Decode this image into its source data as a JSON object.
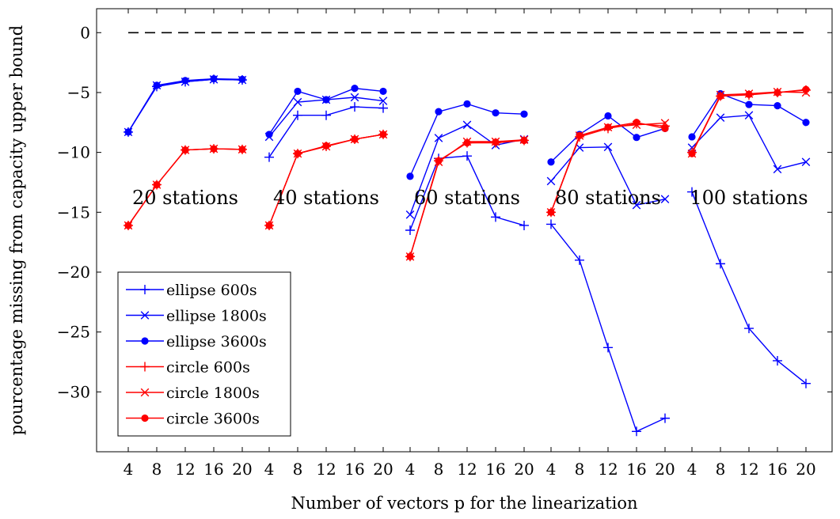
{
  "chart_data": {
    "type": "line",
    "xlabel": "Number of vectors p for the linearization",
    "ylabel": "pourcentage missing from capacity upper bound",
    "ylim": [
      -35,
      2
    ],
    "yticks": [
      0,
      -5,
      -10,
      -15,
      -20,
      -25,
      -30
    ],
    "ytick_labels": [
      "0",
      "−5",
      "−10",
      "−15",
      "−20",
      "−25",
      "−30"
    ],
    "x": [
      4,
      8,
      12,
      16,
      20
    ],
    "x_tick_labels": [
      "4",
      "8",
      "12",
      "16",
      "20"
    ],
    "baseline": {
      "y": 0,
      "style": "dashed",
      "color": "#000000"
    },
    "legend_position": "bottom-left",
    "grid": false,
    "groups": [
      {
        "label": "20 stations",
        "series": [
          {
            "name": "ellipse 600s",
            "values": [
              -8.3,
              -4.5,
              -4.1,
              -3.9,
              -3.95
            ]
          },
          {
            "name": "ellipse 1800s",
            "values": [
              -8.3,
              -4.4,
              -4.1,
              -3.9,
              -3.95
            ]
          },
          {
            "name": "ellipse 3600s",
            "values": [
              -8.3,
              -4.4,
              -4.0,
              -3.85,
              -3.9
            ]
          },
          {
            "name": "circle 600s",
            "values": [
              -16.1,
              -12.7,
              -9.8,
              -9.7,
              -9.75
            ]
          },
          {
            "name": "circle 1800s",
            "values": [
              -16.1,
              -12.7,
              -9.8,
              -9.7,
              -9.75
            ]
          },
          {
            "name": "circle 3600s",
            "values": [
              -16.1,
              -12.7,
              -9.8,
              -9.7,
              -9.75
            ]
          }
        ]
      },
      {
        "label": "40 stations",
        "series": [
          {
            "name": "ellipse 600s",
            "values": [
              -10.4,
              -6.9,
              -6.9,
              -6.2,
              -6.3
            ]
          },
          {
            "name": "ellipse 1800s",
            "values": [
              -8.7,
              -5.8,
              -5.6,
              -5.4,
              -5.7
            ]
          },
          {
            "name": "ellipse 3600s",
            "values": [
              -8.5,
              -4.9,
              -5.6,
              -4.65,
              -4.9
            ]
          },
          {
            "name": "circle 600s",
            "values": [
              -16.1,
              -10.1,
              -9.5,
              -8.9,
              -8.5
            ]
          },
          {
            "name": "circle 1800s",
            "values": [
              -16.1,
              -10.1,
              -9.5,
              -8.9,
              -8.5
            ]
          },
          {
            "name": "circle 3600s",
            "values": [
              -16.1,
              -10.1,
              -9.45,
              -8.9,
              -8.5
            ]
          }
        ]
      },
      {
        "label": "60 stations",
        "series": [
          {
            "name": "ellipse 600s",
            "values": [
              -16.5,
              -10.5,
              -10.3,
              -15.4,
              -16.1
            ]
          },
          {
            "name": "ellipse 1800s",
            "values": [
              -15.2,
              -8.8,
              -7.7,
              -9.4,
              -8.9
            ]
          },
          {
            "name": "ellipse 3600s",
            "values": [
              -12.0,
              -6.6,
              -5.95,
              -6.7,
              -6.8
            ]
          },
          {
            "name": "circle 600s",
            "values": [
              -18.7,
              -10.7,
              -9.2,
              -9.2,
              -9.0
            ]
          },
          {
            "name": "circle 1800s",
            "values": [
              -18.7,
              -10.8,
              -9.1,
              -9.1,
              -8.95
            ]
          },
          {
            "name": "circle 3600s",
            "values": [
              -18.7,
              -10.7,
              -9.2,
              -9.15,
              -9.0
            ]
          }
        ]
      },
      {
        "label": "80 stations",
        "series": [
          {
            "name": "ellipse 600s",
            "values": [
              -16.0,
              -19.0,
              -26.3,
              -33.3,
              -32.2
            ]
          },
          {
            "name": "ellipse 1800s",
            "values": [
              -12.4,
              -9.6,
              -9.55,
              -14.4,
              -13.9
            ]
          },
          {
            "name": "ellipse 3600s",
            "values": [
              -10.8,
              -8.5,
              -6.95,
              -8.75,
              -8.0
            ]
          },
          {
            "name": "circle 600s",
            "values": [
              -15.0,
              -8.7,
              -8.0,
              -7.6,
              -7.8
            ]
          },
          {
            "name": "circle 1800s",
            "values": [
              -15.0,
              -8.6,
              -7.9,
              -7.7,
              -7.55
            ]
          },
          {
            "name": "circle 3600s",
            "values": [
              -15.0,
              -8.6,
              -7.9,
              -7.5,
              -8.0
            ]
          }
        ]
      },
      {
        "label": "100 stations",
        "series": [
          {
            "name": "ellipse 600s",
            "values": [
              -13.3,
              -19.3,
              -24.7,
              -27.4,
              -29.3
            ]
          },
          {
            "name": "ellipse 1800s",
            "values": [
              -9.6,
              -7.1,
              -6.9,
              -11.4,
              -10.8
            ]
          },
          {
            "name": "ellipse 3600s",
            "values": [
              -8.7,
              -5.1,
              -6.0,
              -6.1,
              -7.5
            ]
          },
          {
            "name": "circle 600s",
            "values": [
              -10.0,
              -5.3,
              -5.2,
              -5.0,
              -4.8
            ]
          },
          {
            "name": "circle 1800s",
            "values": [
              -10.1,
              -5.2,
              -5.1,
              -4.95,
              -5.0
            ]
          },
          {
            "name": "circle 3600s",
            "values": [
              -10.1,
              -5.3,
              -5.15,
              -5.0,
              -4.75
            ]
          }
        ]
      }
    ],
    "series_styles": [
      {
        "name": "ellipse 600s",
        "color": "#0000ff",
        "marker": "plus"
      },
      {
        "name": "ellipse 1800s",
        "color": "#0000ff",
        "marker": "x"
      },
      {
        "name": "ellipse 3600s",
        "color": "#0000ff",
        "marker": "dot"
      },
      {
        "name": "circle 600s",
        "color": "#ff0000",
        "marker": "plus"
      },
      {
        "name": "circle 1800s",
        "color": "#ff0000",
        "marker": "x"
      },
      {
        "name": "circle 3600s",
        "color": "#ff0000",
        "marker": "dot"
      }
    ]
  }
}
